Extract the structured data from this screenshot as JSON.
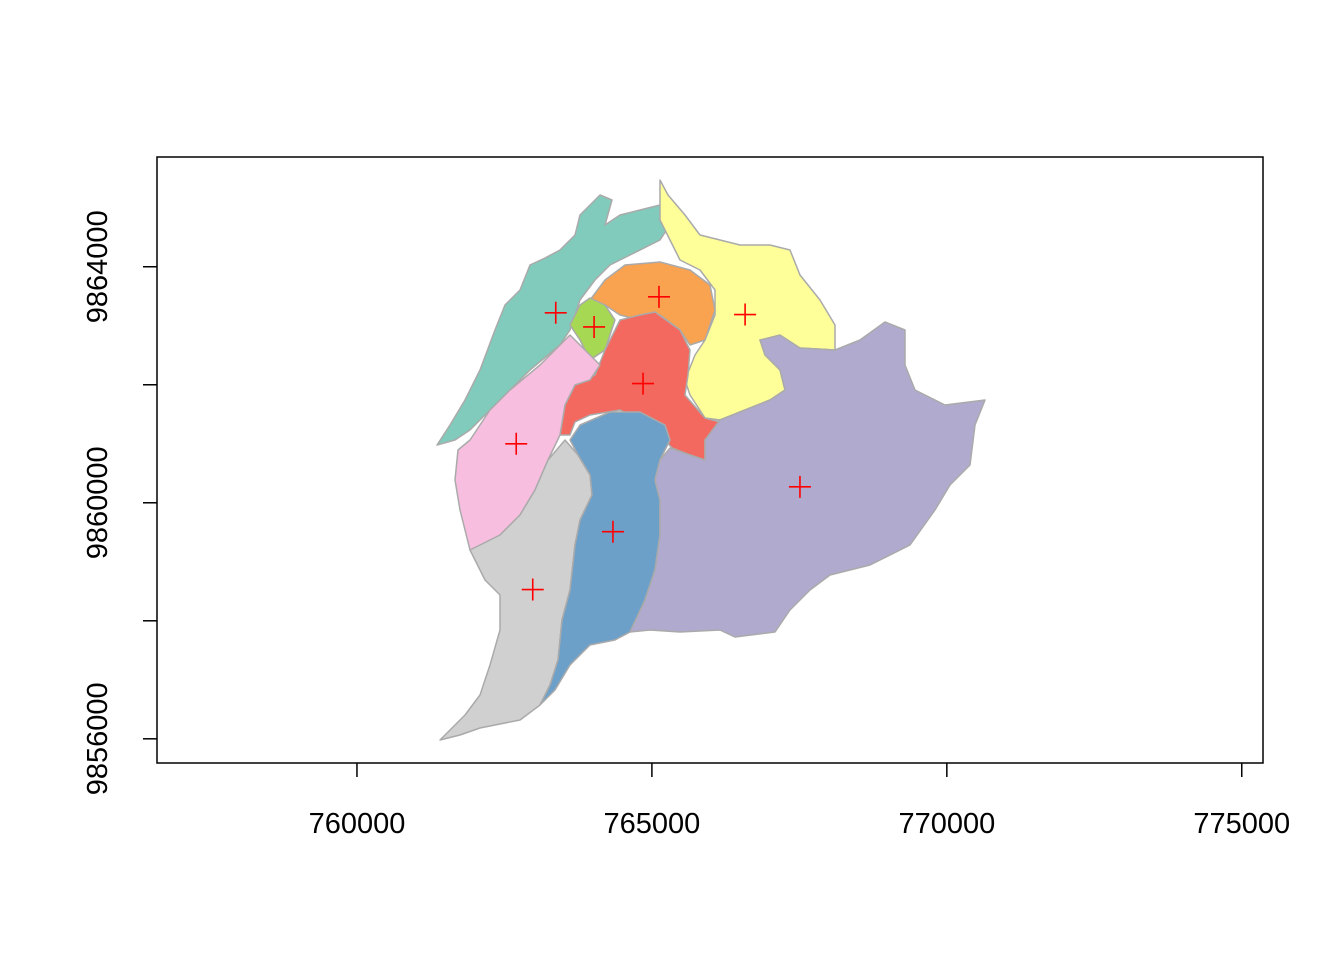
{
  "chart_data": {
    "type": "scatter",
    "x": [
      763370,
      764020,
      765120,
      766580,
      764850,
      762700,
      767510,
      764340,
      762980
    ],
    "y": [
      9863220,
      9862980,
      9863490,
      9863190,
      9862020,
      9861000,
      9860270,
      9859510,
      9858530
    ],
    "color": "#ff0000",
    "marker": "+",
    "xlim": [
      756610,
      775360
    ],
    "ylim": [
      9855590,
      9865860
    ],
    "xticks": [
      760000,
      765000,
      770000,
      775000
    ],
    "yticks": [
      9856000,
      9860000,
      9864000
    ],
    "yticks_minor": [
      9858000,
      9862000
    ]
  }
}
